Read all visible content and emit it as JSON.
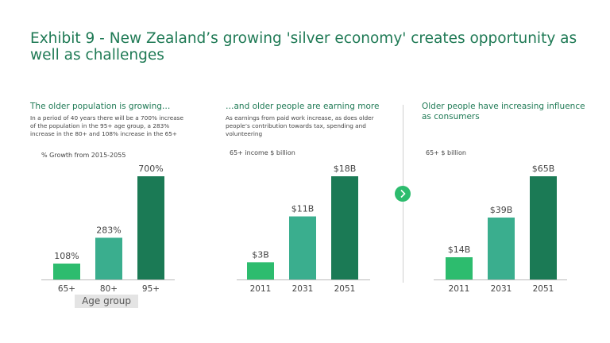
{
  "title": "Exhibit 9 - New Zealand’s growing 'silver economy' creates opportunity as well as challenges",
  "panels": [
    {
      "heading": "The older population is growing…",
      "text_lines": [
        "In a period of 40 years there will be a 700% increase",
        "of the population in the 95+ age group, a 283%",
        "increase in the 80+ and 108% increase in the 65+"
      ],
      "measure": "% Growth from 2015-2055"
    },
    {
      "heading": "…and older people are earning more",
      "text_lines": [
        "As earnings from paid work increase, as does older",
        "people’s contribution towards tax, spending and",
        "volunteering"
      ],
      "measure": "65+ income $ billion"
    },
    {
      "heading_lines": [
        "Older people have increasing influence",
        "as consumers"
      ],
      "measure": "65+ $ billion"
    }
  ],
  "next_icon": "chevron-right-icon",
  "colors": {
    "light": "#2dbc6e",
    "medium": "#3aae8e",
    "dark": "#1b7a55",
    "title": "#1f7a55",
    "axis": "#bbbbbb"
  },
  "chart_data": [
    {
      "type": "bar",
      "categories": [
        "65+",
        "80+",
        "95+"
      ],
      "values": [
        108,
        283,
        700
      ],
      "value_labels": [
        "108%",
        "283%",
        "700%"
      ],
      "xlabel": "Age group",
      "ylim": [
        0,
        700
      ]
    },
    {
      "type": "bar",
      "categories": [
        "2011",
        "2031",
        "2051"
      ],
      "values": [
        3,
        11,
        18
      ],
      "value_labels": [
        "$3B",
        "$11B",
        "$18B"
      ],
      "ylim": [
        0,
        18
      ]
    },
    {
      "type": "bar",
      "categories": [
        "2011",
        "2031",
        "2051"
      ],
      "values": [
        14,
        39,
        65
      ],
      "value_labels": [
        "$14B",
        "$39B",
        "$65B"
      ],
      "ylim": [
        0,
        65
      ]
    }
  ]
}
